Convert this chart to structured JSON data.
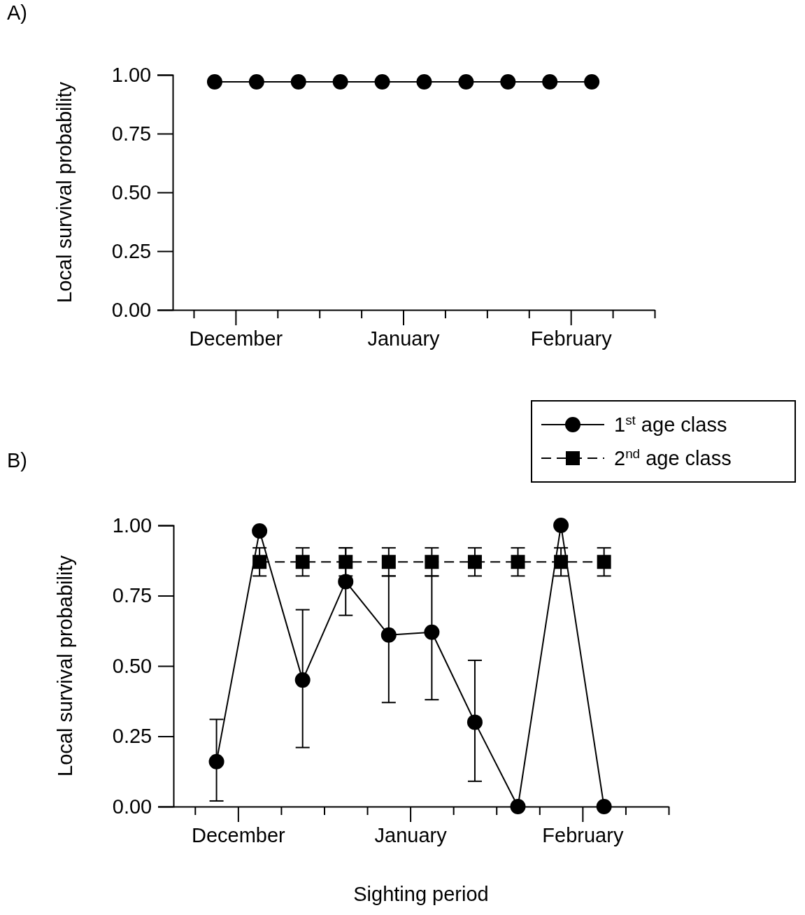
{
  "chart_data": [
    {
      "type": "line",
      "title": "A)",
      "ylabel": "Local survival probability",
      "categories": [
        null,
        null,
        "December",
        null,
        null,
        null,
        null,
        null,
        null,
        null,
        "January",
        null,
        null,
        null,
        null,
        null,
        null,
        null,
        "February",
        null,
        null,
        null,
        null
      ],
      "ylim": [
        0,
        1
      ],
      "yticks": [
        {
          "value": 0,
          "label": "0.00"
        },
        {
          "value": 0.25,
          "label": "0.25"
        },
        {
          "value": 0.5,
          "label": "0.50"
        },
        {
          "value": 0.75,
          "label": "0.75"
        },
        {
          "value": 1,
          "label": "1.00"
        }
      ],
      "grid": false,
      "legend": false,
      "marker": "circle",
      "line_style": "solid",
      "series": [
        {
          "color": "#000000",
          "values": [
            null,
            0.97,
            null,
            0.97,
            null,
            0.97,
            null,
            0.97,
            null,
            0.97,
            null,
            0.97,
            null,
            0.97,
            null,
            0.97,
            null,
            0.97,
            null,
            0.97,
            null,
            null,
            null
          ]
        }
      ]
    },
    {
      "type": "line",
      "title": "B)",
      "xlabel": "Sighting period",
      "ylabel": "Local survival probability",
      "categories": [
        null,
        null,
        "December",
        null,
        null,
        null,
        null,
        null,
        null,
        null,
        "January",
        null,
        null,
        null,
        null,
        null,
        null,
        null,
        "February",
        null,
        null,
        null,
        null
      ],
      "ylim": [
        0,
        1
      ],
      "yticks": [
        {
          "value": 0,
          "label": "0.00"
        },
        {
          "value": 0.25,
          "label": "0.25"
        },
        {
          "value": 0.5,
          "label": "0.50"
        },
        {
          "value": 0.75,
          "label": "0.75"
        },
        {
          "value": 1,
          "label": "1.00"
        }
      ],
      "grid": false,
      "legend": "top right",
      "series": [
        {
          "name": "1$^{st}$ age class",
          "color": "#000000",
          "marker": "circle",
          "line_style": "solid",
          "values": [
            null,
            0.16,
            null,
            0.98,
            null,
            0.45,
            null,
            0.8,
            null,
            0.61,
            null,
            0.62,
            null,
            0.3,
            null,
            0,
            null,
            1,
            null,
            0,
            null,
            null,
            null
          ],
          "errors": [
            null,
            [
              0.02,
              0.31
            ],
            null,
            null,
            null,
            [
              0.21,
              0.7
            ],
            null,
            [
              0.68,
              0.92
            ],
            null,
            [
              0.37,
              0.82
            ],
            null,
            [
              0.38,
              0.82
            ],
            null,
            [
              0.09,
              0.52
            ],
            null,
            null,
            null,
            null,
            null,
            null,
            null,
            null,
            null
          ]
        },
        {
          "name": "2$^{nd}$ age class",
          "color": "#000000",
          "marker": "square",
          "line_style": "dashed",
          "values": [
            null,
            null,
            null,
            0.87,
            null,
            0.87,
            null,
            0.87,
            null,
            0.87,
            null,
            0.87,
            null,
            0.87,
            null,
            0.87,
            null,
            0.87,
            null,
            0.87,
            null,
            null,
            null
          ],
          "errors": [
            null,
            null,
            null,
            [
              0.82,
              0.92
            ],
            null,
            [
              0.82,
              0.92
            ],
            null,
            [
              0.82,
              0.92
            ],
            null,
            [
              0.82,
              0.92
            ],
            null,
            [
              0.82,
              0.92
            ],
            null,
            [
              0.82,
              0.92
            ],
            null,
            [
              0.82,
              0.92
            ],
            null,
            [
              0.82,
              0.92
            ],
            null,
            [
              0.82,
              0.92
            ],
            null,
            null,
            null
          ]
        }
      ]
    }
  ]
}
